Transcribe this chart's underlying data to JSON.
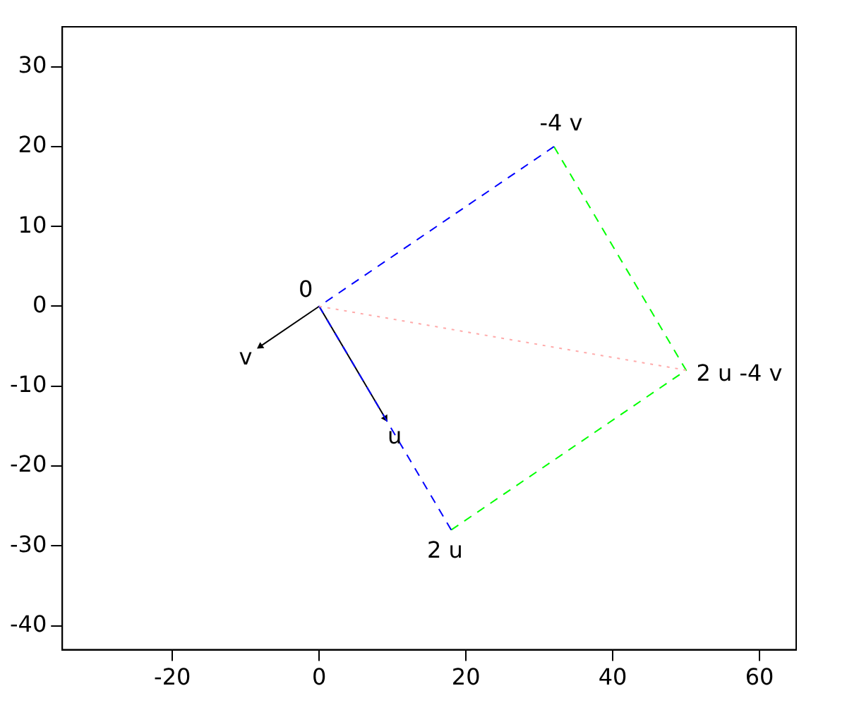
{
  "chart_data": {
    "type": "line",
    "xlim": [
      -35,
      65
    ],
    "ylim": [
      -43,
      35
    ],
    "xticks": [
      -20,
      0,
      20,
      40,
      60
    ],
    "yticks": [
      -40,
      -30,
      -20,
      -10,
      0,
      10,
      20,
      30
    ],
    "grid": false,
    "legend": false,
    "marker": "none",
    "series": [
      {
        "x": [
          0,
          50
        ],
        "values": [
          0,
          -8
        ],
        "color": "#ffaaaa",
        "line_style": "dotted"
      },
      {
        "x": [
          32,
          0,
          18
        ],
        "values": [
          20,
          0,
          -28
        ],
        "color": "#0000ff",
        "line_style": "dashed"
      },
      {
        "x": [
          32,
          50,
          18
        ],
        "values": [
          20,
          -8,
          -28
        ],
        "color": "#00ff00",
        "line_style": "dashed"
      },
      {
        "x": [
          0,
          9
        ],
        "values": [
          0,
          -14
        ],
        "color": "#000000",
        "line_style": "solid",
        "marker": "triangle"
      },
      {
        "x": [
          0,
          -8
        ],
        "values": [
          0,
          -5
        ],
        "color": "#000000",
        "line_style": "solid",
        "marker": "triangle"
      }
    ],
    "annotations": [
      {
        "text": "0",
        "x": 0,
        "y": 0
      },
      {
        "text": "u",
        "x": 9,
        "y": -14
      },
      {
        "text": "v",
        "x": -8,
        "y": -5
      },
      {
        "text": "2 u",
        "x": 18,
        "y": -28
      },
      {
        "text": "-4 v",
        "x": 32,
        "y": 20
      },
      {
        "text": "2 u -4 v",
        "x": 50,
        "y": -8
      }
    ]
  }
}
